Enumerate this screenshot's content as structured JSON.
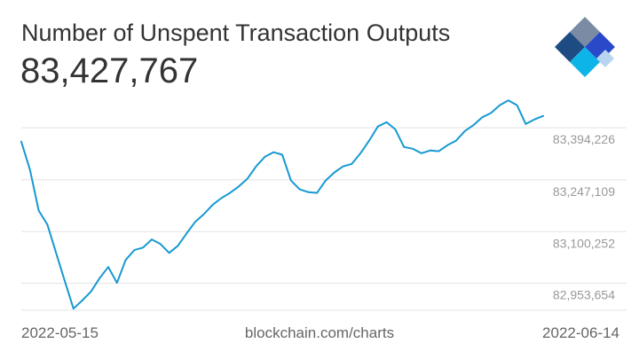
{
  "header": {
    "title": "Number of Unspent Transaction Outputs",
    "current_value": "83,427,767"
  },
  "logo": {
    "icon": "blockchain-logo-icon",
    "colors": [
      "#1E4B82",
      "#7A8BA3",
      "#2949C9",
      "#0DB4E8",
      "#B8D4F0"
    ]
  },
  "footer": {
    "start_date": "2022-05-15",
    "source": "blockchain.com/charts",
    "end_date": "2022-06-14"
  },
  "chart_data": {
    "type": "line",
    "title": "Number of Unspent Transaction Outputs",
    "xlabel": "",
    "ylabel": "",
    "x_range": [
      "2022-05-15",
      "2022-06-14"
    ],
    "ylim": [
      82880000,
      83475000
    ],
    "grid": true,
    "y_ticks": [
      {
        "value": 82953654,
        "label": "82,953,654"
      },
      {
        "value": 83100252,
        "label": "83,100,252"
      },
      {
        "value": 83247109,
        "label": "83,247,109"
      },
      {
        "value": 83394226,
        "label": "83,394,226"
      }
    ],
    "color": "#1799D3",
    "series": [
      {
        "x": [
          "2022-05-15",
          "2022-05-15T12:00",
          "2022-05-16",
          "2022-05-16T12:00",
          "2022-05-17",
          "2022-05-17T12:00",
          "2022-05-18",
          "2022-05-18T12:00",
          "2022-05-19",
          "2022-05-19T12:00",
          "2022-05-20",
          "2022-05-20T12:00",
          "2022-05-21",
          "2022-05-21T12:00",
          "2022-05-22",
          "2022-05-22T12:00",
          "2022-05-23",
          "2022-05-23T12:00",
          "2022-05-24",
          "2022-05-24T12:00",
          "2022-05-25",
          "2022-05-25T12:00",
          "2022-05-26",
          "2022-05-26T12:00",
          "2022-05-27",
          "2022-05-27T12:00",
          "2022-05-28",
          "2022-05-28T12:00",
          "2022-05-29",
          "2022-05-29T12:00",
          "2022-05-30",
          "2022-05-30T12:00",
          "2022-05-31",
          "2022-05-31T12:00",
          "2022-06-01",
          "2022-06-01T12:00",
          "2022-06-02",
          "2022-06-02T12:00",
          "2022-06-03",
          "2022-06-03T12:00",
          "2022-06-04",
          "2022-06-04T12:00",
          "2022-06-05",
          "2022-06-05T12:00",
          "2022-06-06",
          "2022-06-06T12:00",
          "2022-06-07",
          "2022-06-07T12:00",
          "2022-06-08",
          "2022-06-08T12:00",
          "2022-06-09",
          "2022-06-09T12:00",
          "2022-06-10",
          "2022-06-10T12:00",
          "2022-06-11",
          "2022-06-11T12:00",
          "2022-06-12",
          "2022-06-12T12:00",
          "2022-06-13",
          "2022-06-13T12:00",
          "2022-06-14"
        ],
        "values": [
          83355000,
          83275000,
          83160000,
          83120000,
          83040000,
          82960000,
          82882000,
          82905000,
          82930000,
          82968000,
          83000000,
          82955000,
          83020000,
          83048000,
          83055000,
          83078000,
          83065000,
          83040000,
          83060000,
          83095000,
          83128000,
          83150000,
          83176000,
          83195000,
          83210000,
          83228000,
          83250000,
          83285000,
          83312000,
          83325000,
          83318000,
          83245000,
          83220000,
          83212000,
          83210000,
          83245000,
          83268000,
          83285000,
          83292000,
          83322000,
          83358000,
          83398000,
          83410000,
          83390000,
          83340000,
          83335000,
          83322000,
          83330000,
          83328000,
          83345000,
          83358000,
          83385000,
          83402000,
          83424000,
          83436000,
          83458000,
          83472000,
          83458000,
          83405000,
          83418000,
          83427767
        ]
      }
    ]
  }
}
